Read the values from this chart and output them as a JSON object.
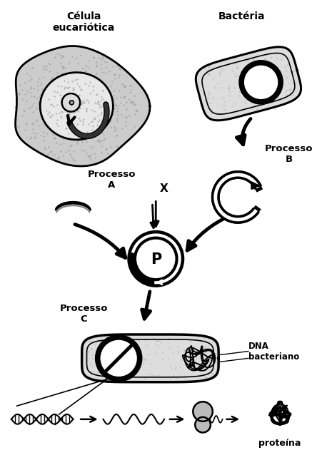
{
  "bg_color": "#ffffff",
  "labels": {
    "celula_eucariotica": "Célula\neucariótica",
    "bacteria": "Bactéria",
    "processo_a": "Processo\nA",
    "processo_b": "Processo\nB",
    "processo_c": "Processo\nC",
    "x_label": "X",
    "p_label": "P",
    "dna_bacteriano": "DNA\nbacteriano",
    "proteina": "proteína"
  },
  "figsize": [
    4.65,
    6.31
  ],
  "dpi": 100,
  "stipple_color": "#aaaaaa",
  "light_gray": "#cccccc",
  "black": "#000000",
  "white": "#ffffff"
}
